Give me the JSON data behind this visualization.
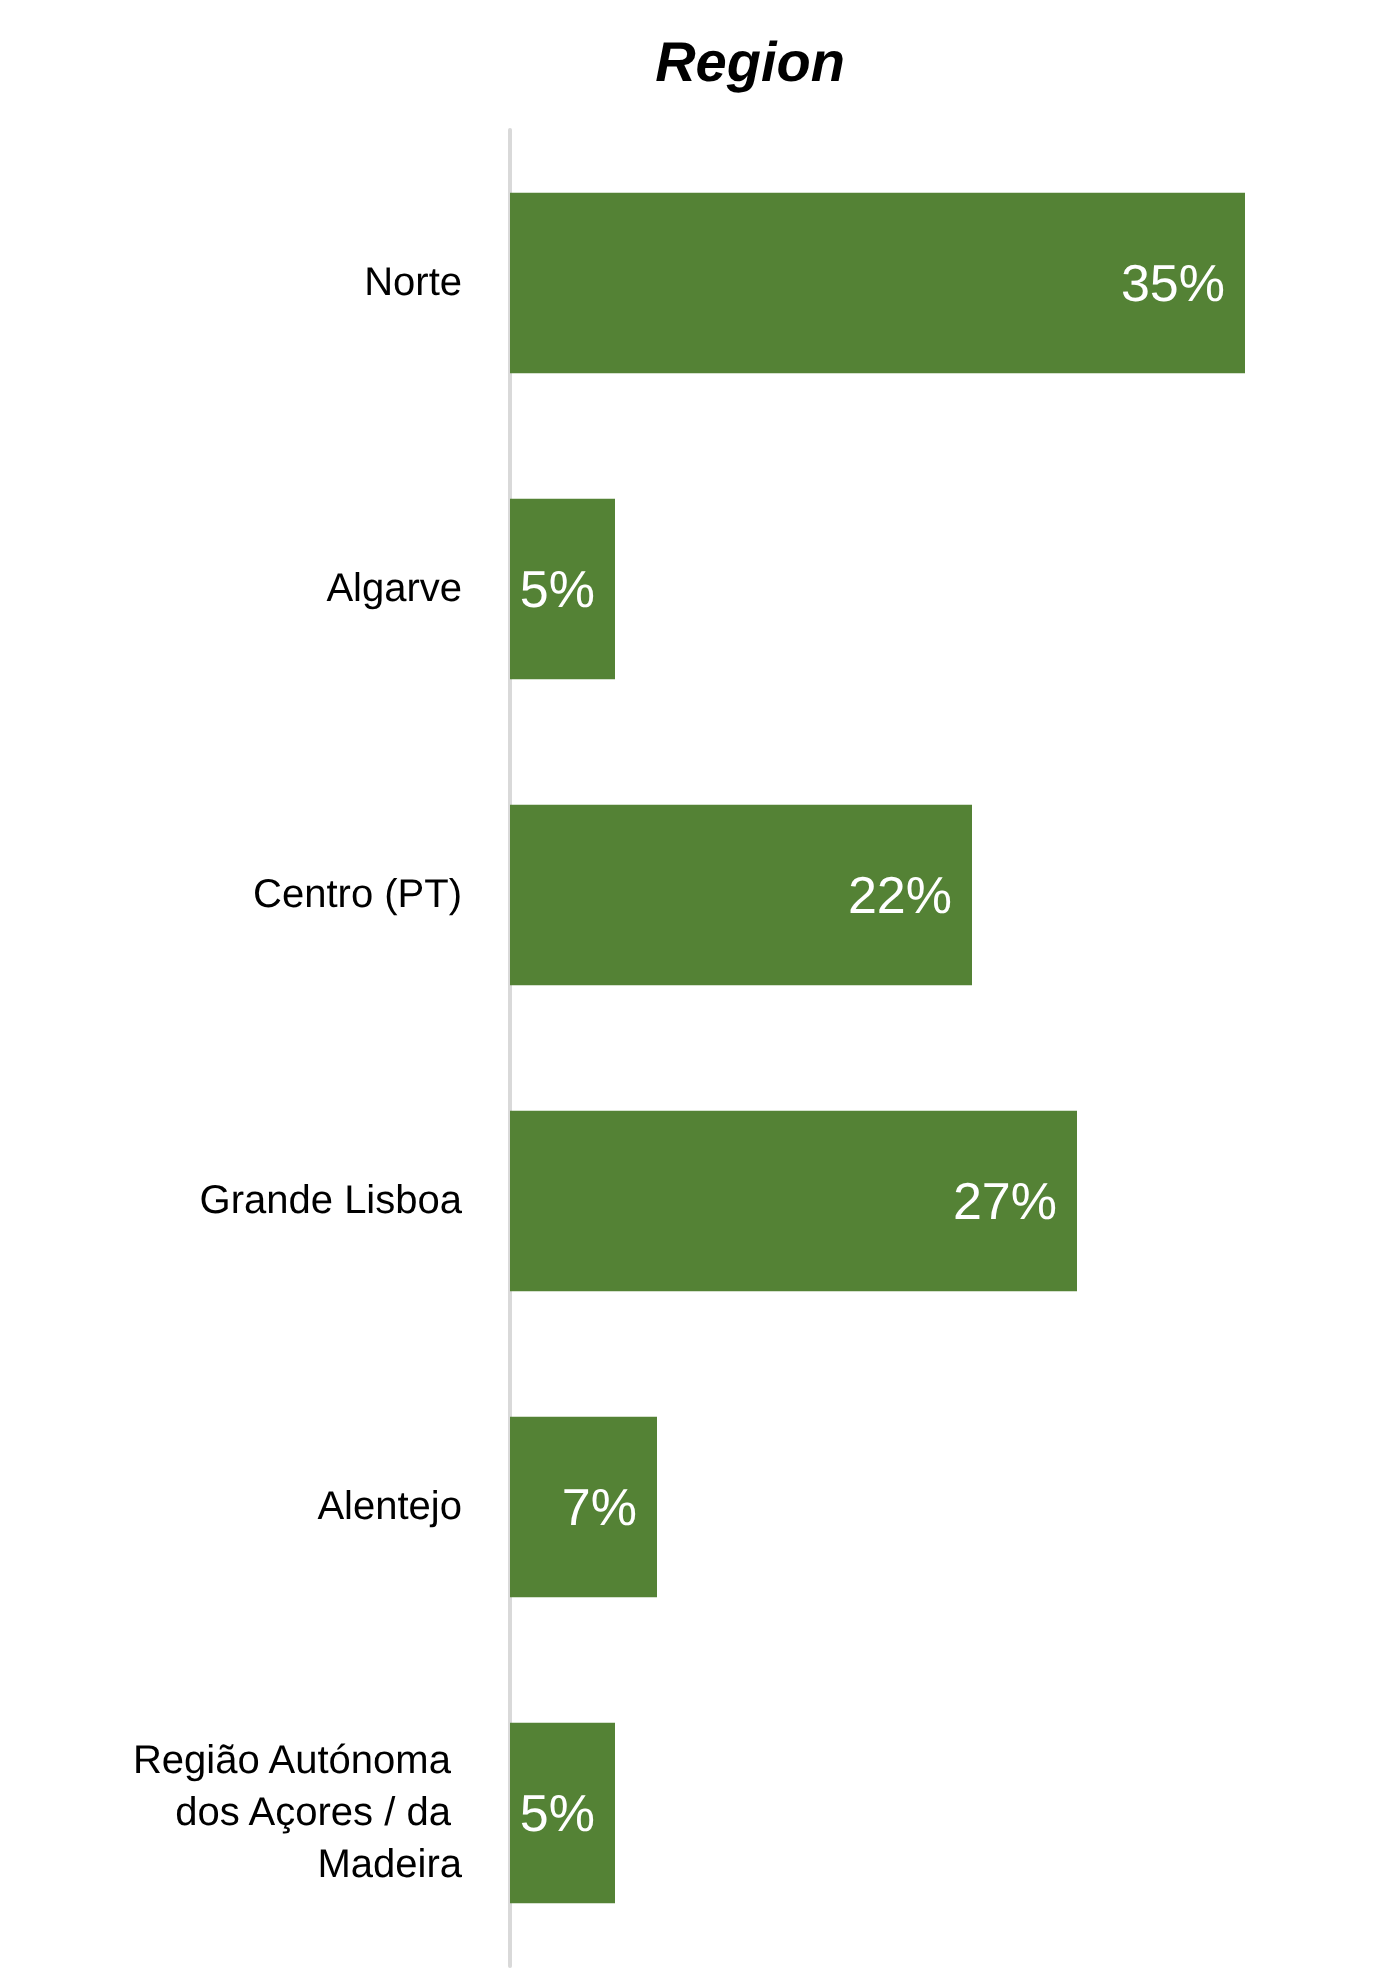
{
  "chart_data": {
    "type": "bar",
    "title": "Region",
    "orientation": "horizontal",
    "categories": [
      "Norte",
      "Algarve",
      "Centro (PT)",
      "Grande Lisboa",
      "Alentejo",
      "Região Autónoma dos Açores / da Madeira"
    ],
    "values": [
      35,
      5,
      22,
      27,
      7,
      5
    ],
    "value_labels": [
      "35%",
      "5%",
      "22%",
      "27%",
      "7%",
      "5%"
    ],
    "color": "#548235",
    "grid": false
  }
}
